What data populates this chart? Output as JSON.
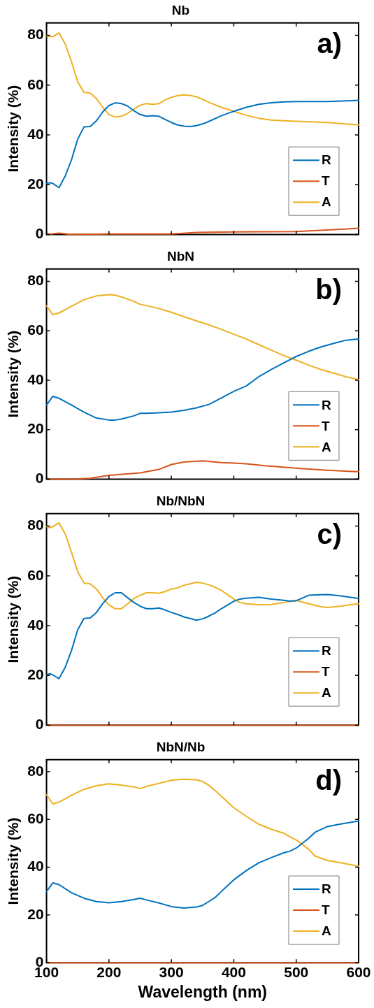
{
  "chart_data": [
    {
      "type": "line",
      "title": "Nb",
      "ylabel": "Intensity (%)",
      "annotations": [
        "a)"
      ],
      "xlim": [
        100,
        600
      ],
      "xticks": [
        100,
        200,
        300,
        400,
        500,
        600
      ],
      "ylim": [
        0,
        85
      ],
      "yticks": [
        0,
        20,
        40,
        60,
        80
      ],
      "tick_labels": "y",
      "grid": false,
      "legend": "bottom right",
      "marker": "none",
      "line_style": "solid",
      "x": [
        100,
        105,
        110,
        120,
        130,
        140,
        150,
        160,
        170,
        180,
        190,
        200,
        210,
        220,
        230,
        240,
        250,
        260,
        270,
        280,
        290,
        300,
        310,
        320,
        330,
        340,
        350,
        360,
        380,
        400,
        420,
        440,
        460,
        480,
        500,
        550,
        600
      ],
      "series": [
        {
          "name": "R",
          "color": "#0072bd",
          "values": [
            20.5,
            20.8,
            20.5,
            18.8,
            23.5,
            30,
            38.3,
            43.2,
            43.4,
            45.7,
            49.2,
            51.8,
            52.9,
            52.6,
            51.6,
            49.7,
            48.2,
            47.5,
            47.7,
            47.5,
            46.2,
            45,
            44,
            43.5,
            43.4,
            43.7,
            44.4,
            45.4,
            47.7,
            49.5,
            51.1,
            52.3,
            52.9,
            53.3,
            53.4,
            53.4,
            53.9
          ]
        },
        {
          "name": "T",
          "color": "#d95319",
          "x": [
            100,
            120,
            140,
            200,
            300,
            340,
            400,
            500,
            550,
            600
          ],
          "values": [
            0,
            0.5,
            0,
            0.2,
            0.2,
            0.8,
            1,
            1.2,
            1.8,
            2.5
          ]
        },
        {
          "name": "A",
          "color": "#edb120",
          "values": [
            79.8,
            79.6,
            79.5,
            81,
            76.5,
            69.4,
            61.3,
            57.1,
            56.8,
            54.6,
            51.1,
            48.2,
            47.2,
            47.5,
            48.7,
            50.4,
            51.9,
            52.6,
            52.3,
            52.6,
            54.1,
            55.1,
            55.8,
            56.1,
            55.9,
            55.3,
            54.3,
            53.1,
            51.1,
            49.5,
            47.9,
            46.7,
            46,
            45.7,
            45.5,
            45,
            44
          ]
        }
      ]
    },
    {
      "type": "line",
      "title": "NbN",
      "ylabel": "Intensity (%)",
      "annotations": [
        "b)"
      ],
      "xlim": [
        100,
        600
      ],
      "xticks": [
        100,
        200,
        300,
        400,
        500,
        600
      ],
      "ylim": [
        0,
        85
      ],
      "yticks": [
        0,
        20,
        40,
        60,
        80
      ],
      "tick_labels": "y",
      "grid": false,
      "legend": "bottom right",
      "marker": "none",
      "line_style": "solid",
      "x": [
        100,
        110,
        120,
        140,
        160,
        180,
        200,
        210,
        220,
        240,
        250,
        260,
        280,
        300,
        320,
        340,
        360,
        380,
        400,
        420,
        440,
        460,
        480,
        500,
        520,
        540,
        560,
        580,
        600
      ],
      "series": [
        {
          "name": "R",
          "color": "#0072bd",
          "values": [
            29.9,
            33.5,
            32.7,
            30,
            27.1,
            24.7,
            23.9,
            23.9,
            24.3,
            25.6,
            26.6,
            26.6,
            26.8,
            27.1,
            27.8,
            28.8,
            30.2,
            32.8,
            35.5,
            37.7,
            41.4,
            44.3,
            47,
            49.6,
            51.7,
            53.5,
            54.9,
            56.2,
            56.7
          ]
        },
        {
          "name": "T",
          "color": "#d95319",
          "x": [
            100,
            140,
            170,
            200,
            250,
            280,
            300,
            320,
            350,
            380,
            400,
            420,
            450,
            500,
            550,
            600
          ],
          "values": [
            0,
            0,
            0.3,
            1.5,
            2.5,
            3.9,
            5.9,
            6.9,
            7.4,
            6.7,
            6.5,
            6.2,
            5.4,
            4.4,
            3.6,
            3.0
          ]
        },
        {
          "name": "A",
          "color": "#edb120",
          "values": [
            70.1,
            66.5,
            67.2,
            69.9,
            72.6,
            74.1,
            74.6,
            74.4,
            73.7,
            71.9,
            70.7,
            70.2,
            69,
            67.5,
            65.7,
            64,
            62.4,
            60.6,
            58.6,
            56.7,
            54.4,
            52.2,
            50,
            48.1,
            46.1,
            44.3,
            42.9,
            41.4,
            40.2
          ]
        }
      ]
    },
    {
      "type": "line",
      "title": "Nb/NbN",
      "ylabel": "Intensity (%)",
      "annotations": [
        "c)"
      ],
      "xlim": [
        100,
        600
      ],
      "xticks": [
        100,
        200,
        300,
        400,
        500,
        600
      ],
      "ylim": [
        0,
        85
      ],
      "yticks": [
        0,
        20,
        40,
        60,
        80
      ],
      "tick_labels": "y",
      "grid": false,
      "legend": "bottom right",
      "marker": "none",
      "line_style": "solid",
      "x": [
        100,
        105,
        110,
        120,
        130,
        140,
        150,
        160,
        170,
        180,
        190,
        200,
        210,
        220,
        230,
        240,
        250,
        260,
        270,
        280,
        290,
        300,
        310,
        320,
        330,
        340,
        350,
        360,
        370,
        380,
        400,
        410,
        420,
        440,
        460,
        480,
        490,
        500,
        520,
        540,
        550,
        570,
        600
      ],
      "series": [
        {
          "name": "R",
          "color": "#0072bd",
          "values": [
            20.2,
            20.7,
            20.2,
            18.7,
            23.3,
            30,
            38.4,
            42.9,
            43.1,
            45.3,
            48.8,
            51.7,
            53.2,
            53.2,
            51.2,
            49.3,
            47.8,
            46.8,
            46.8,
            47.1,
            46.3,
            45.3,
            44.5,
            43.5,
            42.9,
            42.2,
            42.7,
            43.8,
            45.1,
            46.8,
            49.8,
            50.7,
            51,
            51.4,
            50.7,
            50.2,
            49.8,
            50,
            52.2,
            52.4,
            52.5,
            52,
            50.9
          ]
        },
        {
          "name": "T",
          "color": "#d95319",
          "x": [
            100,
            600
          ],
          "values": [
            0,
            0
          ]
        },
        {
          "name": "A",
          "color": "#edb120",
          "values": [
            79.8,
            79.3,
            79.8,
            81.3,
            76.8,
            69.5,
            61.6,
            57.1,
            56.8,
            54.7,
            51.2,
            48.3,
            46.8,
            46.8,
            48.8,
            50.9,
            52.2,
            53.2,
            53.2,
            53,
            53.7,
            54.7,
            55.2,
            56.2,
            56.8,
            57.4,
            57.1,
            56.4,
            55.4,
            54.2,
            50.7,
            49.3,
            48.8,
            48.4,
            48.5,
            49.3,
            49.8,
            50.2,
            48.8,
            47.6,
            47.3,
            47.8,
            48.8
          ]
        }
      ]
    },
    {
      "type": "line",
      "title": "NbN/Nb",
      "xlabel": "Wavelength (nm)",
      "ylabel": "Intensity (%)",
      "annotations": [
        "d)"
      ],
      "xlim": [
        100,
        600
      ],
      "xticks": [
        100,
        200,
        300,
        400,
        500,
        600
      ],
      "ylim": [
        0,
        85
      ],
      "yticks": [
        0,
        20,
        40,
        60,
        80
      ],
      "grid": false,
      "legend": "bottom right",
      "marker": "none",
      "line_style": "solid",
      "x": [
        100,
        110,
        120,
        140,
        160,
        180,
        200,
        220,
        240,
        250,
        260,
        280,
        300,
        320,
        340,
        350,
        360,
        370,
        380,
        400,
        420,
        440,
        460,
        480,
        490,
        500,
        520,
        530,
        550,
        570,
        600
      ],
      "series": [
        {
          "name": "R",
          "color": "#0072bd",
          "values": [
            29.8,
            33.4,
            32.7,
            29.3,
            27,
            25.6,
            25.1,
            25.6,
            26.5,
            27,
            26.3,
            25,
            23.5,
            22.9,
            23.3,
            24,
            25.6,
            27.3,
            29.8,
            34.7,
            38.6,
            41.8,
            44,
            46,
            46.7,
            48,
            52.1,
            54.6,
            57,
            58,
            59.3
          ]
        },
        {
          "name": "T",
          "color": "#d95319",
          "x": [
            100,
            600
          ],
          "values": [
            0,
            0
          ]
        },
        {
          "name": "A",
          "color": "#edb120",
          "values": [
            70.3,
            66.5,
            67.2,
            70.1,
            72.6,
            74.1,
            74.9,
            74.3,
            73.6,
            72.9,
            73.8,
            75.1,
            76.4,
            76.8,
            76.6,
            75.9,
            74.3,
            72.1,
            69.7,
            64.9,
            61.3,
            58,
            55.9,
            54.2,
            52.7,
            51.4,
            47.5,
            44.7,
            42.8,
            41.9,
            40.4
          ]
        }
      ]
    }
  ]
}
